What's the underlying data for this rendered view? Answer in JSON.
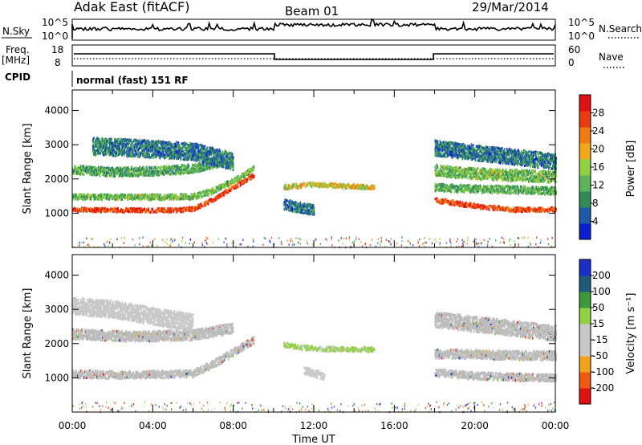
{
  "header": {
    "title": "Adak East (fitACF)",
    "beam": "Beam 01",
    "date": "29/Mar/2014"
  },
  "summary_panels": {
    "nsky_label": "N.Sky",
    "nsky_ticks": [
      "10^5",
      "10^0"
    ],
    "nsearch_label": "N.Search",
    "nsearch_ticks": [
      "10^5",
      "10^0"
    ],
    "freq_label": "Freq.",
    "freq_unit": "[MHz]",
    "freq_ticks": [
      "18",
      "8"
    ],
    "nave_label": "Nave",
    "nave_ticks": [
      "60",
      "0"
    ],
    "cpid_label": "CPID",
    "cpid_value": "normal (fast) 151 RF"
  },
  "colors": {
    "power": [
      "#0a1fd0",
      "#1d5aa8",
      "#2f8c57",
      "#5cb55a",
      "#8fd13f",
      "#f2a71b",
      "#f07a14",
      "#ea3a10",
      "#e01010"
    ],
    "velocity": [
      "#e01010",
      "#f05a10",
      "#f4a21d",
      "#c8c8c8",
      "#c8c8c8",
      "#8fd13f",
      "#3a9a3a",
      "#1e5a7a",
      "#1a2fc8"
    ],
    "ground_scatter": "#bcbcbc"
  },
  "chart_data": [
    {
      "type": "heatmap",
      "name": "power",
      "xlabel": "Time UT",
      "ylabel": "Slant Range [km]",
      "xlim": [
        0,
        24
      ],
      "ylim": [
        0,
        4600
      ],
      "x_ticks": [
        "00:00",
        "04:00",
        "08:00",
        "12:00",
        "16:00",
        "20:00",
        "00:00"
      ],
      "y_ticks": [
        "1000",
        "2000",
        "3000",
        "4000"
      ],
      "colorbar": {
        "label": "Power [dB]",
        "ticks": [
          "28",
          "24",
          "20",
          "16",
          "12",
          "8",
          "4"
        ],
        "range": [
          0,
          30
        ]
      },
      "bands": [
        {
          "t": [
            0,
            3,
            5,
            6,
            7,
            8,
            9
          ],
          "r": [
            1100,
            1080,
            1080,
            1120,
            1400,
            1750,
            2100
          ],
          "w": 120,
          "p": 26
        },
        {
          "t": [
            0,
            3,
            6,
            7,
            8,
            9
          ],
          "r": [
            1480,
            1460,
            1480,
            1650,
            1950,
            2300
          ],
          "w": 160,
          "p": 12
        },
        {
          "t": [
            0,
            2,
            4,
            6,
            7,
            8
          ],
          "r": [
            2280,
            2200,
            2220,
            2300,
            2450,
            2500
          ],
          "w": 260,
          "p": 10
        },
        {
          "t": [
            1,
            3,
            6,
            8
          ],
          "r": [
            2950,
            2900,
            2800,
            2500
          ],
          "w": 500,
          "p": 6
        },
        {
          "t": [
            10.5,
            12,
            13.5,
            15
          ],
          "r": [
            1760,
            1830,
            1790,
            1760
          ],
          "w": 130,
          "p": 17
        },
        {
          "t": [
            10.5,
            12
          ],
          "r": [
            1250,
            1080
          ],
          "w": 300,
          "p": 6
        },
        {
          "t": [
            18,
            20,
            22,
            24
          ],
          "r": [
            1380,
            1200,
            1100,
            1100
          ],
          "w": 130,
          "p": 26
        },
        {
          "t": [
            18,
            20,
            22,
            24
          ],
          "r": [
            1750,
            1700,
            1680,
            1650
          ],
          "w": 220,
          "p": 11
        },
        {
          "t": [
            18,
            20,
            22,
            24
          ],
          "r": [
            2250,
            2150,
            2100,
            2050
          ],
          "w": 330,
          "p": 12
        },
        {
          "t": [
            18,
            21,
            24
          ],
          "r": [
            2900,
            2700,
            2500
          ],
          "w": 450,
          "p": 6
        }
      ]
    },
    {
      "type": "heatmap",
      "name": "velocity",
      "xlabel": "Time UT",
      "ylabel": "Slant Range [km]",
      "xlim": [
        0,
        24
      ],
      "ylim": [
        0,
        4600
      ],
      "x_ticks": [
        "00:00",
        "04:00",
        "08:00",
        "12:00",
        "16:00",
        "20:00",
        "00:00"
      ],
      "y_ticks": [
        "1000",
        "2000",
        "3000",
        "4000"
      ],
      "colorbar": {
        "label": "Velocity [m s⁻¹]",
        "ticks": [
          "200",
          "100",
          "50",
          "15",
          "-15",
          "-50",
          "-100",
          "-200"
        ],
        "range": [
          -250,
          250
        ]
      },
      "bands": [
        {
          "t": [
            0,
            3,
            6,
            7,
            8,
            9
          ],
          "r": [
            1100,
            1080,
            1120,
            1400,
            1750,
            2100
          ],
          "w": 220,
          "v": 0,
          "gs": 1
        },
        {
          "t": [
            0,
            3,
            6,
            8
          ],
          "r": [
            2280,
            2200,
            2250,
            2450
          ],
          "w": 300,
          "v": 0,
          "gs": 1
        },
        {
          "t": [
            0,
            2,
            4,
            6
          ],
          "r": [
            3100,
            3000,
            2800,
            2600
          ],
          "w": 500,
          "v": -45
        },
        {
          "t": [
            10.5,
            12,
            13.5,
            15
          ],
          "r": [
            1950,
            1850,
            1830,
            1820
          ],
          "w": 140,
          "v": 45
        },
        {
          "t": [
            11.5,
            12.5
          ],
          "r": [
            1200,
            1050
          ],
          "w": 220,
          "v": -60
        },
        {
          "t": [
            18,
            20,
            22,
            24
          ],
          "r": [
            1150,
            1050,
            1020,
            1000
          ],
          "w": 220,
          "v": 0,
          "gs": 1
        },
        {
          "t": [
            18,
            20,
            22,
            24
          ],
          "r": [
            1700,
            1680,
            1650,
            1650
          ],
          "w": 260,
          "v": 0,
          "gs": 1
        },
        {
          "t": [
            18,
            21,
            24
          ],
          "r": [
            2700,
            2500,
            2300
          ],
          "w": 450,
          "v": 0,
          "gs": 1
        }
      ]
    }
  ]
}
